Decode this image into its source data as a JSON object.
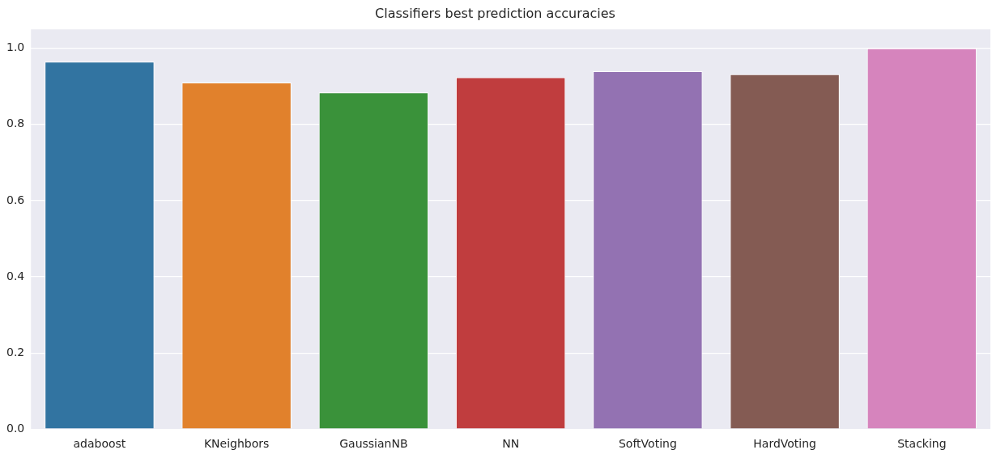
{
  "chart_data": {
    "type": "bar",
    "title": "Classifiers best prediction accuracies",
    "categories": [
      "adaboost",
      "KNeighbors",
      "GaussianNB",
      "NN",
      "SoftVoting",
      "HardVoting",
      "Stacking"
    ],
    "values": [
      0.965,
      0.91,
      0.884,
      0.924,
      0.94,
      0.932,
      1.0
    ],
    "colors": [
      "#3274a1",
      "#e1812c",
      "#3a923a",
      "#c03d3e",
      "#9372b2",
      "#845b53",
      "#d684bd"
    ],
    "ylim": [
      0,
      1.05
    ],
    "yticks": [
      {
        "value": 0,
        "label": "0.0"
      },
      {
        "value": 0.2,
        "label": "0.2"
      },
      {
        "value": 0.4,
        "label": "0.4"
      },
      {
        "value": 0.6,
        "label": "0.6"
      },
      {
        "value": 0.8,
        "label": "0.8"
      },
      {
        "value": 1,
        "label": "1.0"
      }
    ],
    "grid": "y"
  }
}
